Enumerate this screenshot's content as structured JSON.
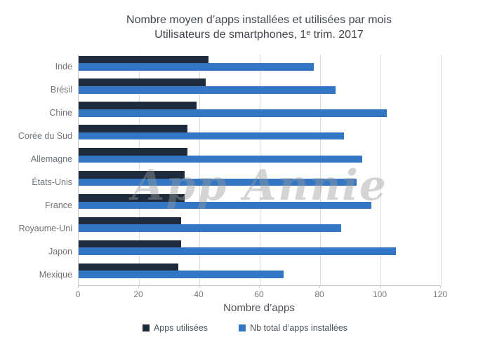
{
  "title": "Nombre moyen d’apps installées et utilisées par mois",
  "subtitle": "Utilisateurs de smartphones, 1ᵉ trim. 2017",
  "watermark": "App Annie",
  "colors": {
    "used_bar": "#1e2b3c",
    "installed_bar": "#3377c4",
    "gridline": "#dcdcdc",
    "axis_line": "#c9c9c9",
    "title_text": "#41464d",
    "tick_text": "#75797e",
    "category_text": "#6e7479"
  },
  "chart_data": {
    "type": "bar",
    "orientation": "horizontal",
    "title": "Nombre moyen d’apps installées et utilisées par mois",
    "subtitle": "Utilisateurs de smartphones, 1ᵉ trim. 2017",
    "categories": [
      "Inde",
      "Brésil",
      "Chine",
      "Corée du Sud",
      "Allemagne",
      "États-Unis",
      "France",
      "Royaume-Uni",
      "Japon",
      "Mexique"
    ],
    "series": [
      {
        "name": "Apps utilisées",
        "color": "#1e2b3c",
        "values": [
          43,
          42,
          39,
          36,
          36,
          35,
          35,
          34,
          34,
          33
        ]
      },
      {
        "name": "Nb total d’apps installées",
        "color": "#3377c4",
        "values": [
          78,
          85,
          102,
          88,
          94,
          92,
          97,
          87,
          105,
          68
        ]
      }
    ],
    "xlabel": "Nombre d’apps",
    "ylabel": "",
    "xlim": [
      0,
      120
    ],
    "xticks": [
      0,
      20,
      40,
      60,
      80,
      100,
      120
    ],
    "grid": true,
    "legend_position": "bottom"
  }
}
